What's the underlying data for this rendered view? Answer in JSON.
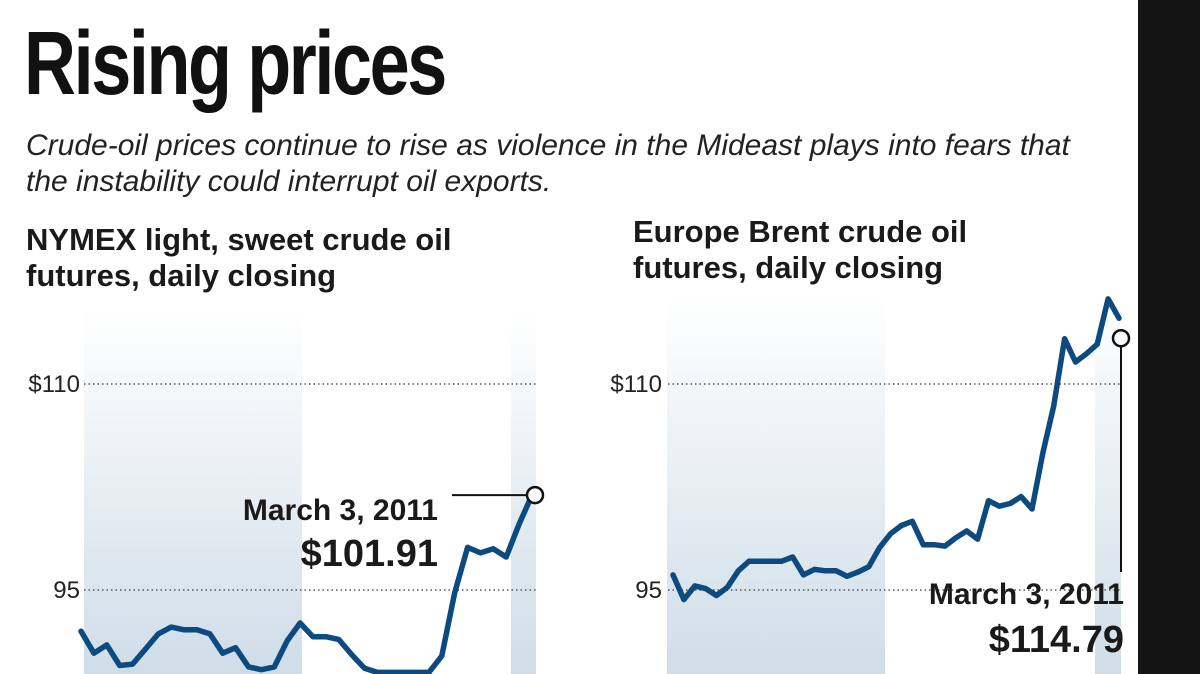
{
  "headline": "Rising prices",
  "subhead": "Crude-oil prices continue to rise as violence in the Mideast plays into fears that the instability could interrupt oil exports.",
  "colors": {
    "line": "#0c4a80",
    "band_dark": "#cfdde8",
    "band_light": "#ffffff",
    "strip": "#141414"
  },
  "chart_data": [
    {
      "type": "line",
      "title_lines": [
        "NYMEX light, sweet crude oil",
        "futures, daily closing"
      ],
      "y_ticks": [
        {
          "value": 110,
          "label": "$110"
        },
        {
          "value": 95,
          "label": "95"
        }
      ],
      "ylim": [
        88.8,
        116.4
      ],
      "grid": "horizontal-dotted",
      "series": [
        {
          "values": [
            92.0,
            90.4,
            91.0,
            89.5,
            89.6,
            90.7,
            91.8,
            92.3,
            92.1,
            92.1,
            91.8,
            90.4,
            90.8,
            89.4,
            89.2,
            89.4,
            91.3,
            92.6,
            91.6,
            91.6,
            91.4,
            90.3,
            89.3,
            89.0,
            89.0,
            89.0,
            89.0,
            89.0,
            90.2,
            94.8,
            98.1,
            97.7,
            98.0,
            97.4,
            99.8,
            101.91
          ]
        }
      ],
      "annotation": {
        "date": "March 3, 2011",
        "price": "$101.91",
        "value": 101.91
      }
    },
    {
      "type": "line",
      "title_lines": [
        "Europe Brent crude oil",
        "futures, daily closing"
      ],
      "y_ticks": [
        {
          "value": 110,
          "label": "$110"
        },
        {
          "value": 95,
          "label": "95"
        }
      ],
      "ylim": [
        88.8,
        116.4
      ],
      "grid": "horizontal-dotted",
      "series": [
        {
          "values": [
            96.1,
            94.3,
            95.3,
            95.1,
            94.6,
            95.2,
            96.4,
            97.1,
            97.1,
            97.1,
            97.1,
            97.4,
            96.1,
            96.5,
            96.4,
            96.4,
            96.0,
            96.3,
            96.7,
            98.1,
            99.1,
            99.7,
            100.0,
            98.3,
            98.3,
            98.2,
            98.8,
            99.3,
            98.7,
            101.5,
            101.1,
            101.3,
            101.8,
            100.9,
            105.0,
            108.4,
            113.3,
            111.6,
            112.2,
            112.9,
            116.2,
            114.79
          ]
        }
      ],
      "annotation": {
        "date": "March 3, 2011",
        "price": "$114.79",
        "value": 114.79
      }
    }
  ]
}
